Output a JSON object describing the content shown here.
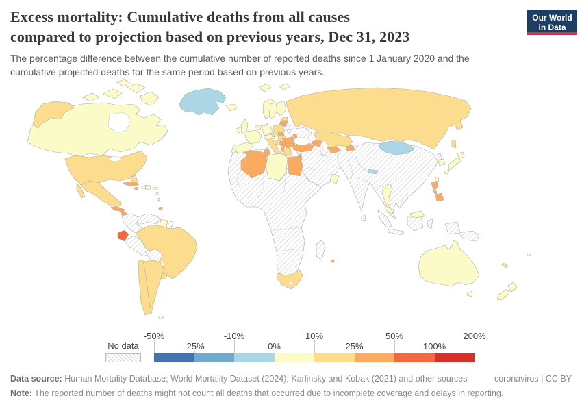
{
  "header": {
    "title_line1": "Excess mortality: Cumulative deaths from all causes",
    "title_line2": "compared to projection based on previous years, Dec 31, 2023",
    "subtitle": "The percentage difference between the cumulative number of reported deaths since 1 January 2020 and the cumulative projected deaths for the same period based on previous years.",
    "logo": {
      "line1": "Our World",
      "line2": "in Data",
      "bg_color": "#1d3d63",
      "accent_color": "#cf3741"
    }
  },
  "legend": {
    "no_data_label": "No data",
    "tick_labels": [
      "-50%",
      "-25%",
      "-10%",
      "0%",
      "10%",
      "25%",
      "50%",
      "100%",
      "200%"
    ],
    "bin_colors": [
      "#4471b2",
      "#73a8cd",
      "#abd6e5",
      "#fbfbc7",
      "#fcdd8d",
      "#fbab60",
      "#f0693f",
      "#d5312a"
    ]
  },
  "footer": {
    "source_label": "Data source:",
    "source_text": "Human Mortality Database; World Mortality Dataset (2024); Karlinsky and Kobak (2021) and other sources",
    "link_text": "coronavirus",
    "separator": "|",
    "license_text": "CC BY",
    "note_label": "Note:",
    "note_text": "The reported number of deaths might not count all deaths that occurred due to incomplete coverage and delays in reporting."
  },
  "chart_data": {
    "type": "choropleth_map",
    "title": "Excess mortality: Cumulative deaths from all causes compared to projection based on previous years",
    "date": "Dec 31, 2023",
    "unit": "%",
    "legend_position": "bottom",
    "bins": [
      {
        "range": "-50% to -25%",
        "color": "#4471b2"
      },
      {
        "range": "-25% to -10%",
        "color": "#73a8cd"
      },
      {
        "range": "-10% to 0%",
        "color": "#abd6e5"
      },
      {
        "range": "0% to 10%",
        "color": "#fbfbc7"
      },
      {
        "range": "10% to 25%",
        "color": "#fcdd8d"
      },
      {
        "range": "25% to 50%",
        "color": "#fbab60"
      },
      {
        "range": "50% to 100%",
        "color": "#f0693f"
      },
      {
        "range": "100% to 200%",
        "color": "#d5312a"
      }
    ],
    "no_data": {
      "label": "No data",
      "pattern": "diagonal-hatch"
    },
    "regions": [
      {
        "id": "greenland",
        "label": "Greenland",
        "bin": 2
      },
      {
        "id": "canada",
        "label": "Canada",
        "bin": 3
      },
      {
        "id": "united-states",
        "label": "United States",
        "bin": 4
      },
      {
        "id": "mexico",
        "label": "Mexico",
        "bin": 4
      },
      {
        "id": "guatemala",
        "label": "Guatemala",
        "bin": 5
      },
      {
        "id": "honduras",
        "label": "Honduras",
        "bin": 5
      },
      {
        "id": "nicaragua",
        "label": "Nicaragua",
        "bin": 5
      },
      {
        "id": "costa-rica",
        "label": "Costa Rica",
        "bin": 5
      },
      {
        "id": "panama",
        "label": "Panama",
        "bin": 5
      },
      {
        "id": "cuba",
        "label": "Cuba",
        "bin": 5
      },
      {
        "id": "jamaica",
        "label": "Jamaica",
        "bin": 5
      },
      {
        "id": "haiti",
        "label": "Haiti",
        "bin": -1
      },
      {
        "id": "dominican-republic",
        "label": "Dominican Republic",
        "bin": 3
      },
      {
        "id": "puerto-rico",
        "label": "Puerto Rico",
        "bin": 3
      },
      {
        "id": "lesser-antilles",
        "label": "No data",
        "bin": -1
      },
      {
        "id": "trinidad-and-tobago",
        "label": "Trinidad and Tobago",
        "bin": 5
      },
      {
        "id": "colombia",
        "label": "Colombia",
        "bin": -1
      },
      {
        "id": "venezuela",
        "label": "Venezuela",
        "bin": -1
      },
      {
        "id": "guyana",
        "label": "Guyana",
        "bin": 3
      },
      {
        "id": "suriname",
        "label": "Suriname",
        "bin": -1
      },
      {
        "id": "ecuador",
        "label": "Ecuador",
        "bin": 6
      },
      {
        "id": "peru",
        "label": "Peru",
        "bin": -1
      },
      {
        "id": "brazil",
        "label": "Brazil",
        "bin": 4
      },
      {
        "id": "bolivia",
        "label": "Bolivia",
        "bin": -1
      },
      {
        "id": "paraguay",
        "label": "Paraguay",
        "bin": -1
      },
      {
        "id": "chile",
        "label": "Chile",
        "bin": 4
      },
      {
        "id": "argentina",
        "label": "Argentina",
        "bin": 4
      },
      {
        "id": "uruguay",
        "label": "Uruguay",
        "bin": 4
      },
      {
        "id": "falkland-islands",
        "label": "Falkland Islands",
        "bin": -1
      },
      {
        "id": "iceland",
        "label": "Iceland",
        "bin": 3
      },
      {
        "id": "united-kingdom",
        "label": "United Kingdom",
        "bin": 3
      },
      {
        "id": "ireland",
        "label": "Ireland",
        "bin": 3
      },
      {
        "id": "norway",
        "label": "Norway",
        "bin": 3
      },
      {
        "id": "sweden",
        "label": "Sweden",
        "bin": 3
      },
      {
        "id": "finland",
        "label": "Finland",
        "bin": 3
      },
      {
        "id": "denmark",
        "label": "Denmark",
        "bin": 3
      },
      {
        "id": "estonia",
        "label": "Estonia",
        "bin": 4
      },
      {
        "id": "latvia",
        "label": "Latvia",
        "bin": 5
      },
      {
        "id": "lithuania",
        "label": "Lithuania",
        "bin": 5
      },
      {
        "id": "belarus",
        "label": "Belarus",
        "bin": -1
      },
      {
        "id": "poland",
        "label": "Poland",
        "bin": 4
      },
      {
        "id": "germany",
        "label": "Germany",
        "bin": 3
      },
      {
        "id": "benelux",
        "label": "Netherlands & Belgium",
        "bin": 3
      },
      {
        "id": "france",
        "label": "France",
        "bin": 3
      },
      {
        "id": "spain",
        "label": "Spain",
        "bin": 3
      },
      {
        "id": "portugal",
        "label": "Portugal",
        "bin": 3
      },
      {
        "id": "alpine",
        "label": "Switzerland & Austria",
        "bin": 3
      },
      {
        "id": "czechia",
        "label": "Czechia",
        "bin": 4
      },
      {
        "id": "slovakia",
        "label": "Slovakia",
        "bin": 5
      },
      {
        "id": "hungary",
        "label": "Hungary",
        "bin": 4
      },
      {
        "id": "italy",
        "label": "Italy",
        "bin": 4
      },
      {
        "id": "croatia",
        "label": "Croatia",
        "bin": 4
      },
      {
        "id": "serbia",
        "label": "Serbia",
        "bin": 5
      },
      {
        "id": "albania",
        "label": "Albania",
        "bin": 5
      },
      {
        "id": "greece",
        "label": "Greece",
        "bin": 4
      },
      {
        "id": "romania",
        "label": "Romania",
        "bin": 5
      },
      {
        "id": "bulgaria",
        "label": "Bulgaria",
        "bin": 5
      },
      {
        "id": "moldova",
        "label": "Moldova",
        "bin": 5
      },
      {
        "id": "ukraine",
        "label": "Ukraine",
        "bin": -1
      },
      {
        "id": "russia",
        "label": "Russia",
        "bin": 4
      },
      {
        "id": "kazakhstan",
        "label": "Kazakhstan",
        "bin": 4
      },
      {
        "id": "uzbekistan",
        "label": "Uzbekistan",
        "bin": 5
      },
      {
        "id": "turkmenistan",
        "label": "Turkmenistan",
        "bin": -1
      },
      {
        "id": "kyrgyzstan",
        "label": "Kyrgyzstan",
        "bin": 5
      },
      {
        "id": "caucasus",
        "label": "Caucasus",
        "bin": 5
      },
      {
        "id": "turkey",
        "label": "Turkey",
        "bin": 5
      },
      {
        "id": "israel",
        "label": "Israel",
        "bin": 5
      },
      {
        "id": "oman",
        "label": "Oman",
        "bin": 3
      },
      {
        "id": "southwest-asia-no-data",
        "label": "No data",
        "bin": -1
      },
      {
        "id": "nepal",
        "label": "Nepal",
        "bin": 2
      },
      {
        "id": "sri-lanka",
        "label": "Sri Lanka",
        "bin": -1
      },
      {
        "id": "mongolia",
        "label": "Mongolia",
        "bin": 2
      },
      {
        "id": "north-korea",
        "label": "North Korea",
        "bin": -1
      },
      {
        "id": "south-korea",
        "label": "South Korea",
        "bin": 3
      },
      {
        "id": "japan",
        "label": "Japan",
        "bin": 3
      },
      {
        "id": "taiwan",
        "label": "Taiwan",
        "bin": 3
      },
      {
        "id": "thailand",
        "label": "Thailand",
        "bin": 3
      },
      {
        "id": "malaysia",
        "label": "Malaysia",
        "bin": 3
      },
      {
        "id": "philippines",
        "label": "Philippines",
        "bin": 5
      },
      {
        "id": "indonesia",
        "label": "Indonesia",
        "bin": -1
      },
      {
        "id": "papua-new-guinea",
        "label": "Papua New Guinea",
        "bin": -1
      },
      {
        "id": "australia",
        "label": "Australia",
        "bin": 3
      },
      {
        "id": "new-zealand",
        "label": "New Zealand",
        "bin": 3
      },
      {
        "id": "new-caledonia",
        "label": "New Caledonia",
        "bin": 4
      },
      {
        "id": "fiji",
        "label": "Fiji",
        "bin": -1
      },
      {
        "id": "africa-no-data",
        "label": "No data",
        "bin": -1
      },
      {
        "id": "algeria",
        "label": "Algeria",
        "bin": 5
      },
      {
        "id": "tunisia",
        "label": "Tunisia",
        "bin": 5
      },
      {
        "id": "libya",
        "label": "Libya",
        "bin": 3
      },
      {
        "id": "egypt",
        "label": "Egypt",
        "bin": 5
      },
      {
        "id": "south-africa",
        "label": "South Africa",
        "bin": 4
      },
      {
        "id": "madagascar",
        "label": "Madagascar",
        "bin": -1
      },
      {
        "id": "mauritius",
        "label": "Mauritius",
        "bin": 5
      }
    ]
  }
}
